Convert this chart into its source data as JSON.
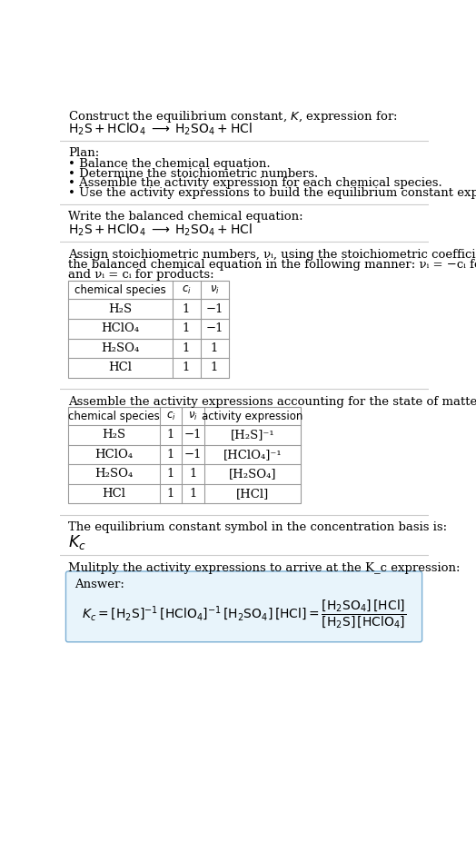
{
  "title_line1": "Construct the equilibrium constant, $K$, expression for:",
  "title_line2_plain": "H₂S + HClO₄  ⟶  H₂SO₄ + HCl",
  "plan_header": "Plan:",
  "plan_items": [
    "• Balance the chemical equation.",
    "• Determine the stoichiometric numbers.",
    "• Assemble the activity expression for each chemical species.",
    "• Use the activity expressions to build the equilibrium constant expression."
  ],
  "balanced_header": "Write the balanced chemical equation:",
  "stoich_para": "Assign stoichiometric numbers, νᵢ, using the stoichiometric coefficients, cᵢ, from\nthe balanced chemical equation in the following manner: νᵢ = −cᵢ for reactants\nand νᵢ = cᵢ for products:",
  "table1_headers": [
    "chemical species",
    "c_i",
    "v_i"
  ],
  "table1_rows": [
    [
      "H₂S",
      "1",
      "−1"
    ],
    [
      "HClO₄",
      "1",
      "−1"
    ],
    [
      "H₂SO₄",
      "1",
      "1"
    ],
    [
      "HCl",
      "1",
      "1"
    ]
  ],
  "activity_header": "Assemble the activity expressions accounting for the state of matter and νᵢ:",
  "table2_headers": [
    "chemical species",
    "c_i",
    "v_i",
    "activity expression"
  ],
  "table2_rows": [
    [
      "H₂S",
      "1",
      "−1",
      "[H₂S]⁻¹"
    ],
    [
      "HClO₄",
      "1",
      "−1",
      "[HClO₄]⁻¹"
    ],
    [
      "H₂SO₄",
      "1",
      "1",
      "[H₂SO₄]"
    ],
    [
      "HCl",
      "1",
      "1",
      "[HCl]"
    ]
  ],
  "kc_header": "The equilibrium constant symbol in the concentration basis is:",
  "kc_symbol": "K_c",
  "multiply_header": "Mulitply the activity expressions to arrive at the K_c expression:",
  "answer_label": "Answer:",
  "kc_expr_left": "K_c = [H₂S]⁻¹ [HClO₄]⁻¹ [H₂SO₄][HCl] =",
  "bg_color": "#ffffff",
  "table_border_color": "#999999",
  "answer_box_fill": "#e8f4fb",
  "answer_box_border": "#7bafd4",
  "text_color": "#000000",
  "sep_color": "#cccccc",
  "font_size": 9.5,
  "small_font": 8.5,
  "lm": 12,
  "rm": 12
}
